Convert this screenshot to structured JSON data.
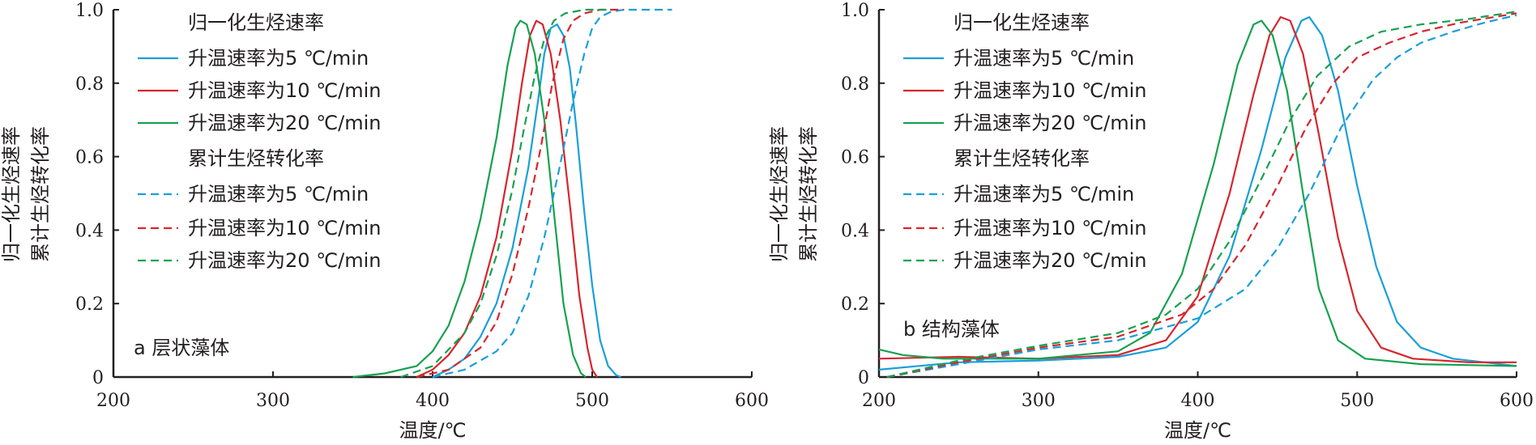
{
  "colors": {
    "series_5": "#1a9fd9",
    "series_10": "#d6262d",
    "series_20": "#17a150",
    "axis": "#231f20"
  },
  "chart_data": [
    {
      "type": "line",
      "panel_label": "a 层状藻体",
      "xlabel": "温度/℃",
      "ylabel_lines": [
        "归一化生烃速率",
        "累计生烃转化率"
      ],
      "xlim": [
        200,
        600
      ],
      "ylim": [
        0,
        1.0
      ],
      "x_ticks": [
        200,
        300,
        400,
        500,
        600
      ],
      "y_ticks": [
        0,
        0.2,
        0.4,
        0.6,
        0.8,
        1.0
      ],
      "y_tick_labels": [
        "0",
        "0.2",
        "0.4",
        "0.6",
        "0.8",
        "1.0"
      ],
      "legend": {
        "position": "top-left",
        "group_solid": "归一化生烃速率",
        "group_dashed": "累计生烃转化率"
      },
      "series": [
        {
          "name": "升温速率为5 ℃/min",
          "group": "rate",
          "style": "solid",
          "color_key": "series_5",
          "points": [
            [
              400,
              0.0
            ],
            [
              410,
              0.02
            ],
            [
              420,
              0.05
            ],
            [
              430,
              0.11
            ],
            [
              440,
              0.2
            ],
            [
              450,
              0.35
            ],
            [
              460,
              0.57
            ],
            [
              466,
              0.75
            ],
            [
              470,
              0.88
            ],
            [
              474,
              0.95
            ],
            [
              478,
              0.96
            ],
            [
              482,
              0.93
            ],
            [
              486,
              0.84
            ],
            [
              490,
              0.68
            ],
            [
              495,
              0.45
            ],
            [
              500,
              0.25
            ],
            [
              505,
              0.1
            ],
            [
              510,
              0.03
            ],
            [
              515,
              0.005
            ],
            [
              518,
              0.0
            ]
          ]
        },
        {
          "name": "升温速率为10 ℃/min",
          "group": "rate",
          "style": "solid",
          "color_key": "series_10",
          "points": [
            [
              390,
              0.0
            ],
            [
              400,
              0.02
            ],
            [
              410,
              0.06
            ],
            [
              420,
              0.12
            ],
            [
              430,
              0.22
            ],
            [
              440,
              0.38
            ],
            [
              450,
              0.62
            ],
            [
              456,
              0.8
            ],
            [
              461,
              0.93
            ],
            [
              465,
              0.97
            ],
            [
              469,
              0.96
            ],
            [
              474,
              0.88
            ],
            [
              480,
              0.7
            ],
            [
              486,
              0.47
            ],
            [
              492,
              0.22
            ],
            [
              497,
              0.08
            ],
            [
              500,
              0.02
            ],
            [
              503,
              0.0
            ]
          ]
        },
        {
          "name": "升温速率为20 ℃/min",
          "group": "rate",
          "style": "solid",
          "color_key": "series_20",
          "points": [
            [
              350,
              0.0
            ],
            [
              370,
              0.01
            ],
            [
              390,
              0.03
            ],
            [
              400,
              0.07
            ],
            [
              410,
              0.14
            ],
            [
              420,
              0.26
            ],
            [
              430,
              0.43
            ],
            [
              440,
              0.65
            ],
            [
              447,
              0.85
            ],
            [
              452,
              0.95
            ],
            [
              455,
              0.97
            ],
            [
              459,
              0.96
            ],
            [
              464,
              0.88
            ],
            [
              470,
              0.7
            ],
            [
              476,
              0.45
            ],
            [
              482,
              0.2
            ],
            [
              488,
              0.06
            ],
            [
              493,
              0.01
            ],
            [
              496,
              0.0
            ]
          ]
        },
        {
          "name": "升温速率为5 ℃/min",
          "group": "conversion",
          "style": "dashed",
          "color_key": "series_5",
          "points": [
            [
              400,
              0.0
            ],
            [
              420,
              0.02
            ],
            [
              440,
              0.07
            ],
            [
              450,
              0.12
            ],
            [
              460,
              0.22
            ],
            [
              470,
              0.38
            ],
            [
              480,
              0.58
            ],
            [
              488,
              0.75
            ],
            [
              495,
              0.88
            ],
            [
              500,
              0.95
            ],
            [
              505,
              0.98
            ],
            [
              512,
              0.995
            ],
            [
              520,
              1.0
            ],
            [
              550,
              1.0
            ]
          ]
        },
        {
          "name": "升温速率为10 ℃/min",
          "group": "conversion",
          "style": "dashed",
          "color_key": "series_10",
          "points": [
            [
              390,
              0.0
            ],
            [
              410,
              0.02
            ],
            [
              430,
              0.08
            ],
            [
              440,
              0.15
            ],
            [
              450,
              0.28
            ],
            [
              460,
              0.46
            ],
            [
              468,
              0.63
            ],
            [
              475,
              0.8
            ],
            [
              482,
              0.92
            ],
            [
              488,
              0.97
            ],
            [
              495,
              0.99
            ],
            [
              505,
              1.0
            ],
            [
              520,
              1.0
            ]
          ]
        },
        {
          "name": "升温速率为20 ℃/min",
          "group": "conversion",
          "style": "dashed",
          "color_key": "series_20",
          "points": [
            [
              380,
              0.0
            ],
            [
              400,
              0.03
            ],
            [
              420,
              0.12
            ],
            [
              430,
              0.2
            ],
            [
              440,
              0.33
            ],
            [
              450,
              0.51
            ],
            [
              457,
              0.67
            ],
            [
              464,
              0.82
            ],
            [
              470,
              0.92
            ],
            [
              476,
              0.97
            ],
            [
              483,
              0.99
            ],
            [
              495,
              1.0
            ],
            [
              510,
              1.0
            ]
          ]
        }
      ]
    },
    {
      "type": "line",
      "panel_label": "b 结构藻体",
      "xlabel": "温度/℃",
      "ylabel_lines": [
        "归一化生烃速率",
        "累计生烃转化率"
      ],
      "xlim": [
        200,
        600
      ],
      "ylim": [
        0,
        1.0
      ],
      "x_ticks": [
        200,
        300,
        400,
        500,
        600
      ],
      "y_ticks": [
        0,
        0.2,
        0.4,
        0.6,
        0.8,
        1.0
      ],
      "y_tick_labels": [
        "0",
        "0.2",
        "0.4",
        "0.6",
        "0.8",
        "1.0"
      ],
      "legend": {
        "position": "top-left",
        "group_solid": "归一化生烃速率",
        "group_dashed": "累计生烃转化率"
      },
      "series": [
        {
          "name": "升温速率为5 ℃/min",
          "group": "rate",
          "style": "solid",
          "color_key": "series_5",
          "points": [
            [
              200,
              0.02
            ],
            [
              250,
              0.04
            ],
            [
              300,
              0.045
            ],
            [
              350,
              0.055
            ],
            [
              380,
              0.08
            ],
            [
              400,
              0.15
            ],
            [
              420,
              0.33
            ],
            [
              440,
              0.62
            ],
            [
              455,
              0.87
            ],
            [
              465,
              0.97
            ],
            [
              470,
              0.98
            ],
            [
              478,
              0.93
            ],
            [
              488,
              0.78
            ],
            [
              500,
              0.52
            ],
            [
              512,
              0.3
            ],
            [
              525,
              0.15
            ],
            [
              540,
              0.08
            ],
            [
              560,
              0.05
            ],
            [
              580,
              0.04
            ],
            [
              600,
              0.03
            ]
          ]
        },
        {
          "name": "升温速率为10 ℃/min",
          "group": "rate",
          "style": "solid",
          "color_key": "series_10",
          "points": [
            [
              200,
              0.05
            ],
            [
              250,
              0.055
            ],
            [
              300,
              0.05
            ],
            [
              350,
              0.06
            ],
            [
              380,
              0.1
            ],
            [
              400,
              0.22
            ],
            [
              420,
              0.5
            ],
            [
              435,
              0.77
            ],
            [
              445,
              0.93
            ],
            [
              452,
              0.98
            ],
            [
              458,
              0.97
            ],
            [
              466,
              0.88
            ],
            [
              476,
              0.66
            ],
            [
              488,
              0.38
            ],
            [
              500,
              0.18
            ],
            [
              515,
              0.08
            ],
            [
              535,
              0.05
            ],
            [
              570,
              0.04
            ],
            [
              600,
              0.04
            ]
          ]
        },
        {
          "name": "升温速率为20 ℃/min",
          "group": "rate",
          "style": "solid",
          "color_key": "series_20",
          "points": [
            [
              200,
              0.075
            ],
            [
              215,
              0.06
            ],
            [
              240,
              0.05
            ],
            [
              300,
              0.05
            ],
            [
              350,
              0.07
            ],
            [
              370,
              0.12
            ],
            [
              390,
              0.28
            ],
            [
              410,
              0.58
            ],
            [
              425,
              0.85
            ],
            [
              435,
              0.96
            ],
            [
              440,
              0.97
            ],
            [
              447,
              0.93
            ],
            [
              456,
              0.78
            ],
            [
              466,
              0.5
            ],
            [
              476,
              0.24
            ],
            [
              488,
              0.1
            ],
            [
              505,
              0.05
            ],
            [
              540,
              0.035
            ],
            [
              600,
              0.03
            ]
          ]
        },
        {
          "name": "升温速率为5 ℃/min",
          "group": "conversion",
          "style": "dashed",
          "color_key": "series_5",
          "points": [
            [
              205,
              0.0
            ],
            [
              250,
              0.035
            ],
            [
              300,
              0.075
            ],
            [
              350,
              0.1
            ],
            [
              400,
              0.16
            ],
            [
              430,
              0.24
            ],
            [
              450,
              0.35
            ],
            [
              470,
              0.5
            ],
            [
              490,
              0.68
            ],
            [
              510,
              0.81
            ],
            [
              525,
              0.87
            ],
            [
              540,
              0.91
            ],
            [
              560,
              0.94
            ],
            [
              580,
              0.965
            ],
            [
              600,
              0.985
            ]
          ]
        },
        {
          "name": "升温速率为10 ℃/min",
          "group": "conversion",
          "style": "dashed",
          "color_key": "series_10",
          "points": [
            [
              205,
              0.0
            ],
            [
              250,
              0.04
            ],
            [
              300,
              0.08
            ],
            [
              350,
              0.11
            ],
            [
              390,
              0.17
            ],
            [
              410,
              0.24
            ],
            [
              430,
              0.36
            ],
            [
              450,
              0.52
            ],
            [
              468,
              0.68
            ],
            [
              485,
              0.8
            ],
            [
              500,
              0.87
            ],
            [
              520,
              0.91
            ],
            [
              540,
              0.94
            ],
            [
              565,
              0.965
            ],
            [
              600,
              0.99
            ]
          ]
        },
        {
          "name": "升温速率为20 ℃/min",
          "group": "conversion",
          "style": "dashed",
          "color_key": "series_20",
          "points": [
            [
              205,
              0.0
            ],
            [
              250,
              0.045
            ],
            [
              300,
              0.085
            ],
            [
              350,
              0.12
            ],
            [
              380,
              0.17
            ],
            [
              400,
              0.24
            ],
            [
              420,
              0.37
            ],
            [
              440,
              0.54
            ],
            [
              458,
              0.7
            ],
            [
              475,
              0.82
            ],
            [
              495,
              0.9
            ],
            [
              515,
              0.94
            ],
            [
              540,
              0.96
            ],
            [
              570,
              0.975
            ],
            [
              600,
              0.995
            ]
          ]
        }
      ]
    }
  ]
}
